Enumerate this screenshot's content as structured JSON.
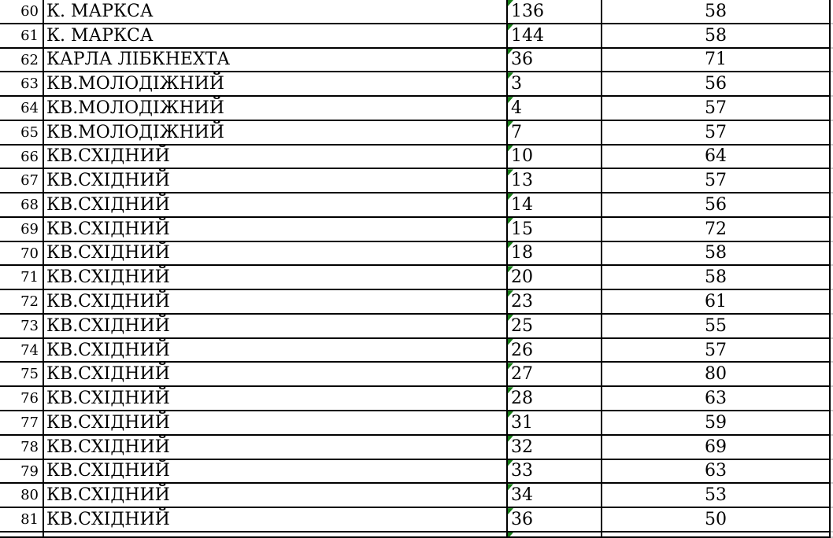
{
  "app": "spreadsheet-fragment",
  "colors": {
    "grid": "#000000",
    "outside": "#c9c9c9",
    "indicator": "#177d17",
    "text": "#000000",
    "background": "#ffffff"
  },
  "icons": {
    "error_indicator": "green-corner-triangle"
  },
  "table": {
    "columns": [
      "row_number",
      "street_name",
      "house_number",
      "value"
    ],
    "rows": [
      {
        "num": "60",
        "street": "К. МАРКСА",
        "house": "136",
        "value": "58"
      },
      {
        "num": "61",
        "street": "К. МАРКСА",
        "house": "144",
        "value": "58"
      },
      {
        "num": "62",
        "street": "КАРЛА ЛІБКНЕХТА",
        "house": "36",
        "value": "71"
      },
      {
        "num": "63",
        "street": "КВ.МОЛОДІЖНИЙ",
        "house": "3",
        "value": "56"
      },
      {
        "num": "64",
        "street": "КВ.МОЛОДІЖНИЙ",
        "house": "4",
        "value": "57"
      },
      {
        "num": "65",
        "street": "КВ.МОЛОДІЖНИЙ",
        "house": "7",
        "value": "57"
      },
      {
        "num": "66",
        "street": "КВ.СХІДНИЙ",
        "house": "10",
        "value": "64"
      },
      {
        "num": "67",
        "street": "КВ.СХІДНИЙ",
        "house": "13",
        "value": "57"
      },
      {
        "num": "68",
        "street": "КВ.СХІДНИЙ",
        "house": "14",
        "value": "56"
      },
      {
        "num": "69",
        "street": "КВ.СХІДНИЙ",
        "house": "15",
        "value": "72"
      },
      {
        "num": "70",
        "street": "КВ.СХІДНИЙ",
        "house": "18",
        "value": "58"
      },
      {
        "num": "71",
        "street": "КВ.СХІДНИЙ",
        "house": "20",
        "value": "58"
      },
      {
        "num": "72",
        "street": "КВ.СХІДНИЙ",
        "house": "23",
        "value": "61"
      },
      {
        "num": "73",
        "street": "КВ.СХІДНИЙ",
        "house": "25",
        "value": "55"
      },
      {
        "num": "74",
        "street": "КВ.СХІДНИЙ",
        "house": "26",
        "value": "57"
      },
      {
        "num": "75",
        "street": "КВ.СХІДНИЙ",
        "house": "27",
        "value": "80"
      },
      {
        "num": "76",
        "street": "КВ.СХІДНИЙ",
        "house": "28",
        "value": "63"
      },
      {
        "num": "77",
        "street": "КВ.СХІДНИЙ",
        "house": "31",
        "value": "59"
      },
      {
        "num": "78",
        "street": "КВ.СХІДНИЙ",
        "house": "32",
        "value": "69"
      },
      {
        "num": "79",
        "street": "КВ.СХІДНИЙ",
        "house": "33",
        "value": "63"
      },
      {
        "num": "80",
        "street": "КВ.СХІДНИЙ",
        "house": "34",
        "value": "53"
      },
      {
        "num": "81",
        "street": "КВ.СХІДНИЙ",
        "house": "36",
        "value": "50"
      }
    ],
    "partial_row": {
      "num": "",
      "street": "",
      "house": "",
      "value": ""
    }
  }
}
